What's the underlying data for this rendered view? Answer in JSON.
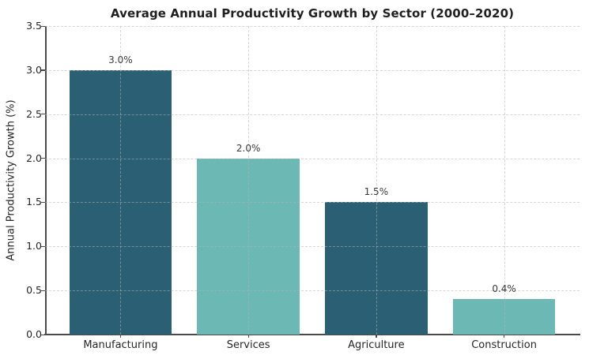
{
  "chart_data": {
    "type": "bar",
    "title": "Average Annual Productivity Growth by Sector (2000–2020)",
    "categories": [
      "Manufacturing",
      "Services",
      "Agriculture",
      "Construction"
    ],
    "values": [
      3.0,
      2.0,
      1.5,
      0.4
    ],
    "value_labels": [
      "3.0%",
      "2.0%",
      "1.5%",
      "0.4%"
    ],
    "bar_colors": [
      "#2a5f74",
      "#6bb8b4",
      "#2a5f74",
      "#6bb8b4"
    ],
    "xlabel": "",
    "ylabel": "Annual Productivity Growth (%)",
    "ylim": [
      0,
      3.5
    ],
    "ytick_labels": [
      "0.0",
      "0.5",
      "1.0",
      "1.5",
      "2.0",
      "2.5",
      "3.0",
      "3.5"
    ],
    "ytick_values": [
      0.0,
      0.5,
      1.0,
      1.5,
      2.0,
      2.5,
      3.0,
      3.5
    ],
    "grid": "dashed, horizontal at each y tick and vertical at each bar center, drawn above bars with transparency",
    "legend": null,
    "colors": {
      "dark_teal": "#2a5f74",
      "light_teal": "#6bb8b4",
      "spine": "#4a4a4a",
      "grid": "#b4b4b4",
      "title_text": "#1f1f1f",
      "tick_text": "#262626"
    }
  }
}
